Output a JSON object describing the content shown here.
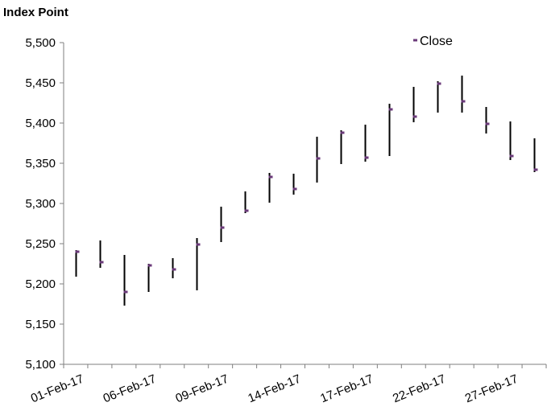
{
  "chart_data": {
    "type": "hlc",
    "ylabel": "Index Point",
    "ylim": [
      5100,
      5500
    ],
    "yticks": [
      5100,
      5150,
      5200,
      5250,
      5300,
      5350,
      5400,
      5450,
      5500
    ],
    "ytick_labels": [
      "5,100",
      "5,150",
      "5,200",
      "5,250",
      "5,300",
      "5,350",
      "5,400",
      "5,450",
      "5,500"
    ],
    "xtick_labels": [
      "01-Feb-17",
      "06-Feb-17",
      "09-Feb-17",
      "14-Feb-17",
      "17-Feb-17",
      "22-Feb-17",
      "27-Feb-17"
    ],
    "xtick_indices": [
      0,
      3,
      6,
      9,
      12,
      15,
      18
    ],
    "legend": {
      "label": "Close",
      "position": "top-right"
    },
    "grid": false,
    "high_low_color": "#000000",
    "close_color": "#6b3a7a",
    "series": [
      {
        "high": 5242,
        "low": 5209,
        "close": 5240
      },
      {
        "high": 5254,
        "low": 5220,
        "close": 5227
      },
      {
        "high": 5236,
        "low": 5173,
        "close": 5190
      },
      {
        "high": 5225,
        "low": 5190,
        "close": 5223
      },
      {
        "high": 5232,
        "low": 5207,
        "close": 5218
      },
      {
        "high": 5257,
        "low": 5192,
        "close": 5249
      },
      {
        "high": 5296,
        "low": 5252,
        "close": 5270
      },
      {
        "high": 5315,
        "low": 5288,
        "close": 5291
      },
      {
        "high": 5338,
        "low": 5301,
        "close": 5333
      },
      {
        "high": 5337,
        "low": 5311,
        "close": 5318
      },
      {
        "high": 5383,
        "low": 5326,
        "close": 5356
      },
      {
        "high": 5391,
        "low": 5349,
        "close": 5388
      },
      {
        "high": 5398,
        "low": 5352,
        "close": 5357
      },
      {
        "high": 5424,
        "low": 5359,
        "close": 5417
      },
      {
        "high": 5445,
        "low": 5401,
        "close": 5408
      },
      {
        "high": 5452,
        "low": 5413,
        "close": 5449
      },
      {
        "high": 5459,
        "low": 5413,
        "close": 5427
      },
      {
        "high": 5420,
        "low": 5387,
        "close": 5399
      },
      {
        "high": 5402,
        "low": 5354,
        "close": 5359
      },
      {
        "high": 5381,
        "low": 5339,
        "close": 5342
      }
    ]
  }
}
